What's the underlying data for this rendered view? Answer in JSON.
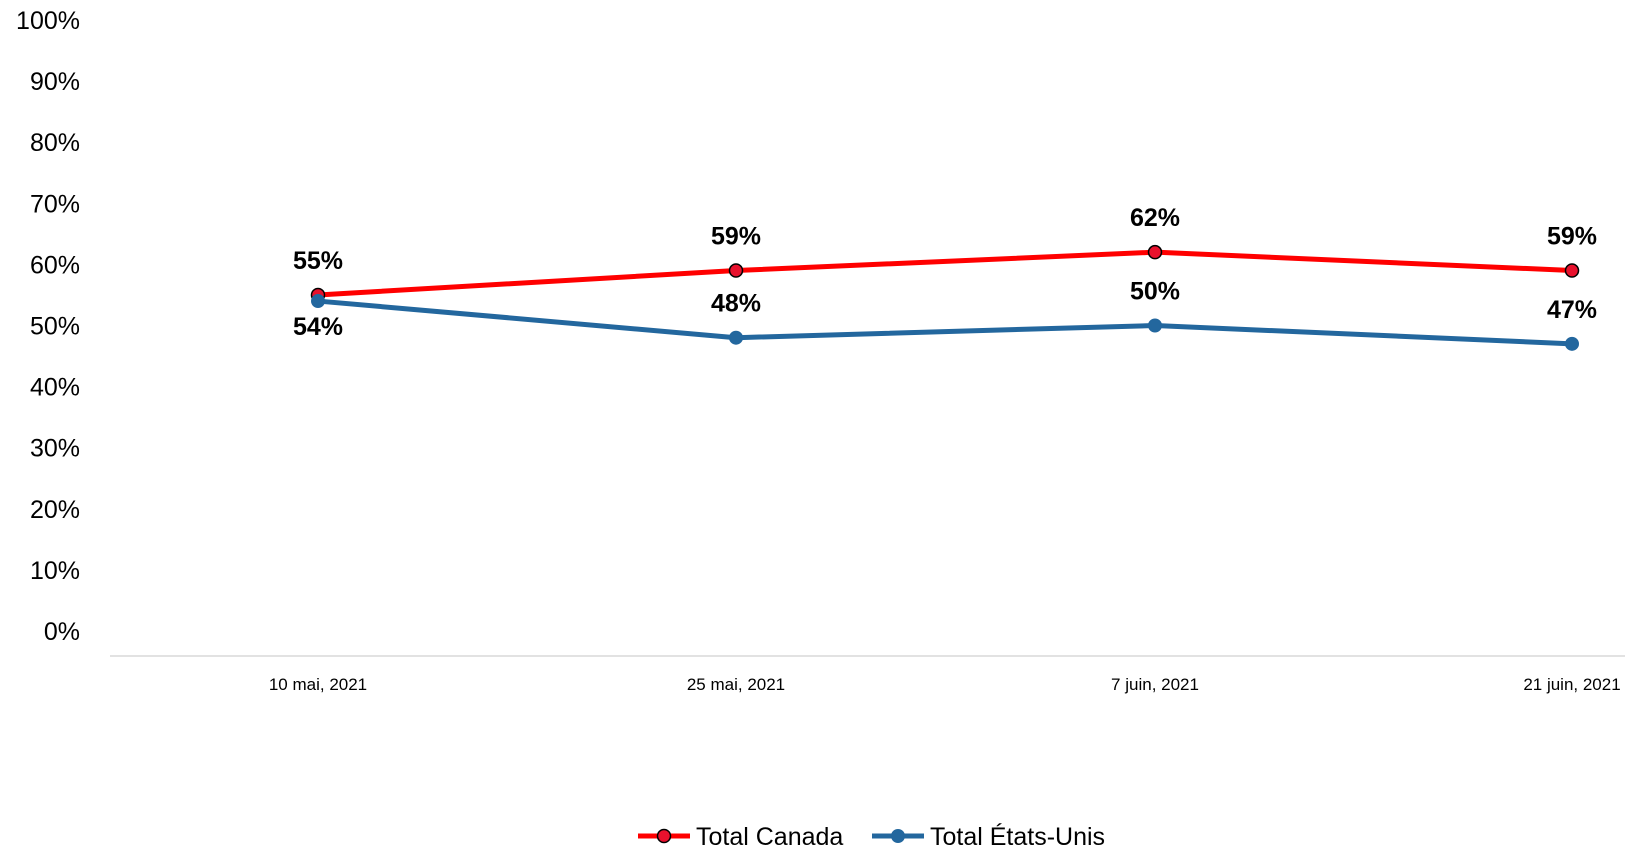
{
  "chart_data": {
    "type": "line",
    "title": "",
    "xlabel": "",
    "ylabel": "",
    "categories": [
      "10 mai, 2021",
      "25 mai, 2021",
      "7 juin, 2021",
      "21 juin, 2021"
    ],
    "ylim": [
      0,
      100
    ],
    "yticks": [
      "0%",
      "10%",
      "20%",
      "30%",
      "40%",
      "50%",
      "60%",
      "70%",
      "80%",
      "90%",
      "100%"
    ],
    "grid": false,
    "legend_position": "bottom",
    "series": [
      {
        "name": "Total Canada",
        "values": [
          55,
          59,
          62,
          59
        ],
        "labels": [
          "55%",
          "59%",
          "62%",
          "59%"
        ],
        "color": "#ff0000",
        "marker_fill": "#e8112d",
        "label_position": "above"
      },
      {
        "name": "Total États-Unis",
        "values": [
          54,
          48,
          50,
          47
        ],
        "labels": [
          "54%",
          "48%",
          "50%",
          "47%"
        ],
        "color": "#23679e",
        "marker_fill": "#23679e",
        "label_position": "mixed"
      }
    ]
  }
}
